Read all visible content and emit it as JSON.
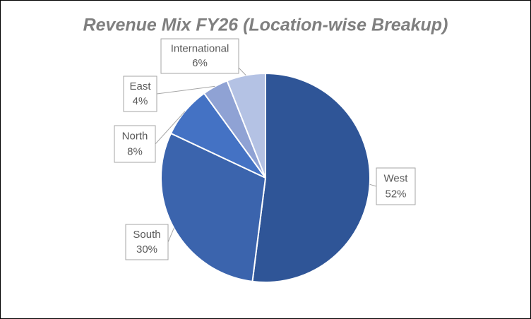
{
  "chart_data": {
    "type": "pie",
    "title": "Revenue Mix FY26 (Location-wise Breakup)",
    "categories": [
      "West",
      "South",
      "North",
      "East",
      "International"
    ],
    "values": [
      52,
      30,
      8,
      4,
      6
    ],
    "value_labels": [
      "52%",
      "30%",
      "8%",
      "4%",
      "6%"
    ],
    "colors": [
      "#2f5597",
      "#3b64ad",
      "#4472c4",
      "#8fa2d4",
      "#b4c2e4"
    ]
  }
}
